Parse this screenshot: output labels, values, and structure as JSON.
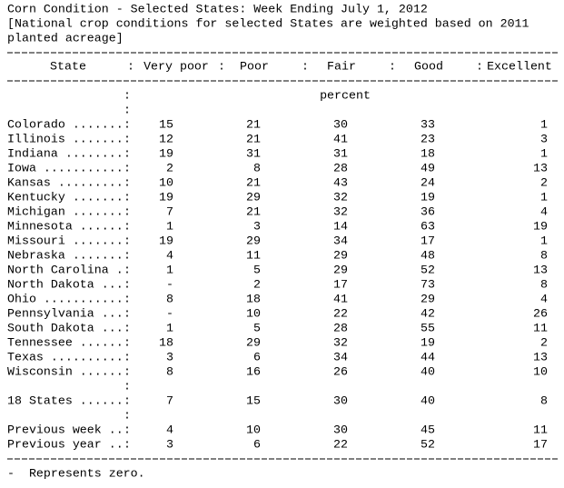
{
  "header": {
    "title": "Corn Condition - Selected States: Week Ending July 1, 2012",
    "note_lines": [
      "[National crop conditions for selected States are weighted based on 2011",
      "planted acreage]"
    ]
  },
  "table": {
    "separator": ":",
    "unit": "percent",
    "columns": [
      "State",
      "Very poor",
      "Poor",
      "Fair",
      "Good",
      "Excellent"
    ],
    "rows": [
      [
        "Colorado .......",
        15,
        21,
        30,
        33,
        1
      ],
      [
        "Illinois .......",
        12,
        21,
        41,
        23,
        3
      ],
      [
        "Indiana ........",
        19,
        31,
        31,
        18,
        1
      ],
      [
        "Iowa ...........",
        2,
        8,
        28,
        49,
        13
      ],
      [
        "Kansas .........",
        10,
        21,
        43,
        24,
        2
      ],
      [
        "Kentucky .......",
        19,
        29,
        32,
        19,
        1
      ],
      [
        "Michigan .......",
        7,
        21,
        32,
        36,
        4
      ],
      [
        "Minnesota ......",
        1,
        3,
        14,
        63,
        19
      ],
      [
        "Missouri .......",
        19,
        29,
        34,
        17,
        1
      ],
      [
        "Nebraska .......",
        4,
        11,
        29,
        48,
        8
      ],
      [
        "North Carolina .",
        1,
        5,
        29,
        52,
        13
      ],
      [
        "North Dakota ...",
        "-",
        2,
        17,
        73,
        8
      ],
      [
        "Ohio ...........",
        8,
        18,
        41,
        29,
        4
      ],
      [
        "Pennsylvania ...",
        "-",
        10,
        22,
        42,
        26
      ],
      [
        "South Dakota ...",
        1,
        5,
        28,
        55,
        11
      ],
      [
        "Tennessee ......",
        18,
        29,
        32,
        19,
        2
      ],
      [
        "Texas ..........",
        3,
        6,
        34,
        44,
        13
      ],
      [
        "Wisconsin ......",
        8,
        16,
        26,
        40,
        10
      ]
    ],
    "total": [
      "18 States ......",
      7,
      15,
      30,
      40,
      8
    ],
    "previous": [
      [
        "Previous week ..",
        4,
        10,
        30,
        45,
        11
      ],
      [
        "Previous year ..",
        3,
        6,
        22,
        52,
        17
      ]
    ]
  },
  "footnote": "-  Represents zero."
}
